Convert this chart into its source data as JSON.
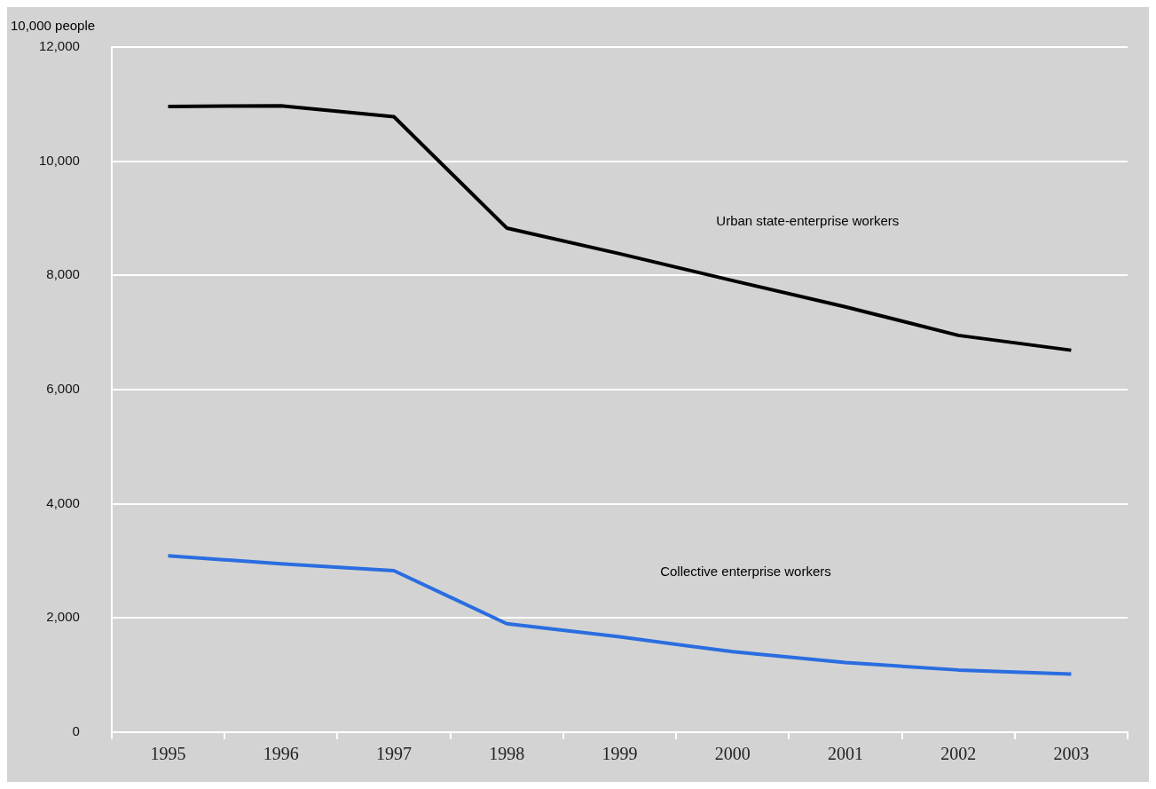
{
  "chart_data": {
    "type": "line",
    "ylabel": "10,000 people",
    "categories": [
      "1995",
      "1996",
      "1997",
      "1998",
      "1999",
      "2000",
      "2001",
      "2002",
      "2003"
    ],
    "series": [
      {
        "color": "#000000",
        "values": [
          10960,
          10970,
          10780,
          8830,
          8380,
          7910,
          7450,
          6950,
          6690
        ]
      },
      {
        "color": "#2a6de0",
        "values": [
          3090,
          2950,
          2830,
          1900,
          1670,
          1410,
          1220,
          1090,
          1020
        ]
      }
    ],
    "ylim": [
      0,
      12000
    ],
    "yticks": [
      0,
      {
        "value": 2000,
        "label": "2,000"
      },
      {
        "value": 4000,
        "label": "4,000"
      },
      {
        "value": 6000,
        "label": "6,000"
      },
      {
        "value": 8000,
        "label": "8,000"
      },
      {
        "value": 10000,
        "label": "10,000"
      },
      {
        "value": 12000,
        "label": "12,000"
      }
    ],
    "grid": "y",
    "legend": false,
    "marker": "none",
    "line_style": "solid",
    "annotations": [
      "Urban state-enterprise workers",
      "Collective enterprise workers"
    ]
  }
}
